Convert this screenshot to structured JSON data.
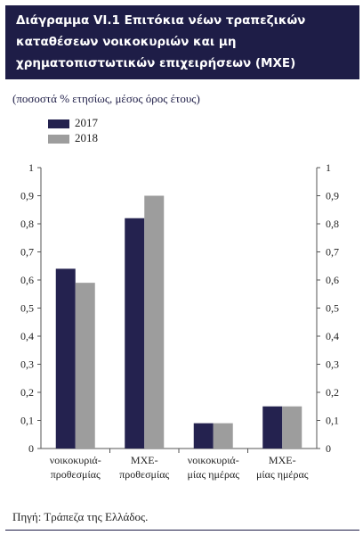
{
  "header": {
    "title_lines": [
      "Διάγραμμα VI.1  Επιτόκια νέων τραπεζικών",
      "καταθέσεων νοικοκυριών και μη",
      "χρηματοπιστωτικών επιχειρήσεων (ΜΧΕ)"
    ]
  },
  "units": "(ποσοστά % ετησίως, μέσος όρος έτους)",
  "source": "Πηγή: Τράπεζα της Ελλάδος.",
  "colors": {
    "header_bg": "#1e1d47",
    "series_2017": "#24224f",
    "series_2018": "#9d9d9d"
  },
  "chart_data": {
    "type": "bar",
    "title": "",
    "xlabel": "",
    "ylabel": "",
    "ylim": [
      0,
      1
    ],
    "yticks": [
      "0",
      "0,1",
      "0,2",
      "0,3",
      "0,4",
      "0,5",
      "0,6",
      "0,7",
      "0,8",
      "0,9",
      "1"
    ],
    "categories": [
      [
        "νοικοκυριά-",
        "προθεσμίας"
      ],
      [
        "ΜΧΕ-",
        "προθεσμίας"
      ],
      [
        "νοικοκυριά-",
        "μίας ημέρας"
      ],
      [
        "ΜΧΕ-",
        "μίας ημέρας"
      ]
    ],
    "series": [
      {
        "name": "2017",
        "values": [
          0.64,
          0.82,
          0.09,
          0.15
        ]
      },
      {
        "name": "2018",
        "values": [
          0.59,
          0.9,
          0.09,
          0.15
        ]
      }
    ],
    "grid": false,
    "legend": "top-left"
  }
}
